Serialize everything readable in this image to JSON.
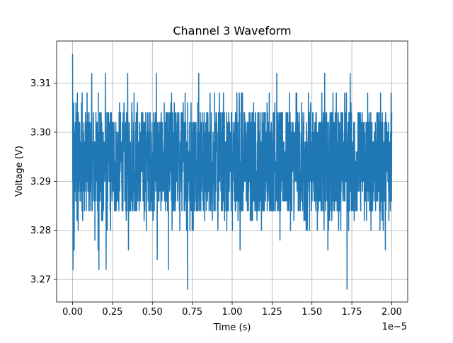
{
  "chart_data": {
    "type": "line",
    "title": "Channel 3 Waveform",
    "xlabel": "Time (s)",
    "ylabel": "Voltage (V)",
    "x_offset_text": "1e−5",
    "x_tick_multiplier": 1e-05,
    "xlim": [
      -1e-06,
      2.1e-05
    ],
    "ylim": [
      3.2654,
      3.3186
    ],
    "x_ticks": [
      {
        "value": 0.0,
        "label": "0.00"
      },
      {
        "value": 2.5e-06,
        "label": "0.25"
      },
      {
        "value": 5e-06,
        "label": "0.50"
      },
      {
        "value": 7.5e-06,
        "label": "0.75"
      },
      {
        "value": 1e-05,
        "label": "1.00"
      },
      {
        "value": 1.25e-05,
        "label": "1.25"
      },
      {
        "value": 1.5e-05,
        "label": "1.50"
      },
      {
        "value": 1.75e-05,
        "label": "1.75"
      },
      {
        "value": 2e-05,
        "label": "2.00"
      }
    ],
    "y_ticks": [
      {
        "value": 3.27,
        "label": "3.27"
      },
      {
        "value": 3.28,
        "label": "3.28"
      },
      {
        "value": 3.29,
        "label": "3.29"
      },
      {
        "value": 3.3,
        "label": "3.30"
      },
      {
        "value": 3.31,
        "label": "3.31"
      }
    ],
    "grid": true,
    "series": [
      {
        "color": "#1f77b4",
        "x_start": 0.0,
        "x_end": 2e-05,
        "points": 2000,
        "band_low": 3.284,
        "band_high": 3.304,
        "quantization_step": 0.002,
        "spikes": [
          {
            "x": 0.0,
            "y": 3.316
          },
          {
            "x": 3e-08,
            "y": 3.272
          },
          {
            "x": 1e-07,
            "y": 3.276
          },
          {
            "x": 3e-07,
            "y": 3.308
          },
          {
            "x": 3.5e-07,
            "y": 3.28
          },
          {
            "x": 6e-07,
            "y": 3.308
          },
          {
            "x": 1.2e-06,
            "y": 3.312
          },
          {
            "x": 1.4e-06,
            "y": 3.278
          },
          {
            "x": 1.6e-06,
            "y": 3.276
          },
          {
            "x": 1.65e-06,
            "y": 3.272
          },
          {
            "x": 2.05e-06,
            "y": 3.312
          },
          {
            "x": 2.1e-06,
            "y": 3.272
          },
          {
            "x": 3.45e-06,
            "y": 3.312
          },
          {
            "x": 3.5e-06,
            "y": 3.276
          },
          {
            "x": 5.25e-06,
            "y": 3.312
          },
          {
            "x": 5.3e-06,
            "y": 3.274
          },
          {
            "x": 6e-06,
            "y": 3.272
          },
          {
            "x": 6.2e-06,
            "y": 3.308
          },
          {
            "x": 7.05e-06,
            "y": 3.308
          },
          {
            "x": 7.2e-06,
            "y": 3.268
          },
          {
            "x": 7.9e-06,
            "y": 3.312
          },
          {
            "x": 9.2e-06,
            "y": 3.308
          },
          {
            "x": 1.045e-05,
            "y": 3.308
          },
          {
            "x": 1.05e-05,
            "y": 3.276
          },
          {
            "x": 1.28e-05,
            "y": 3.312
          },
          {
            "x": 1.3e-05,
            "y": 3.278
          },
          {
            "x": 1.405e-05,
            "y": 3.308
          },
          {
            "x": 1.58e-05,
            "y": 3.312
          },
          {
            "x": 1.6e-05,
            "y": 3.276
          },
          {
            "x": 1.705e-05,
            "y": 3.308
          },
          {
            "x": 1.72e-05,
            "y": 3.268
          },
          {
            "x": 1.74e-05,
            "y": 3.312
          },
          {
            "x": 1.93e-05,
            "y": 3.308
          },
          {
            "x": 1.96e-05,
            "y": 3.276
          },
          {
            "x": 2e-05,
            "y": 3.304
          }
        ]
      }
    ]
  }
}
